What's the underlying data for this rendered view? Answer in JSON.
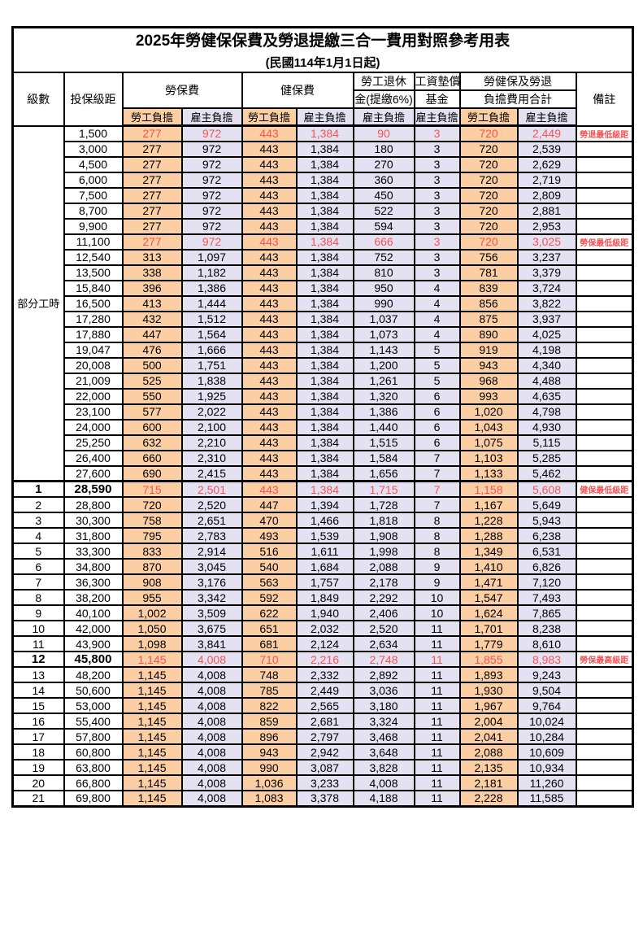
{
  "title": "2025年勞健保保費及勞退提繳三合一費用對照參考用表",
  "subtitle": "(民國114年1月1日起)",
  "header": {
    "level": "級數",
    "bracket": "投保級距",
    "labor": "勞保費",
    "health": "健保費",
    "pension_l1": "勞工退休",
    "pension_l2": "金(提繳6%)",
    "fund_l1": "工資墊償",
    "fund_l2": "基金",
    "total_l1": "勞健保及勞退",
    "total_l2": "負擔費用合計",
    "remark": "備註",
    "employee": "勞工負擔",
    "employer": "雇主負擔"
  },
  "part_time_label": "部分工時",
  "colors": {
    "employee_bg": "#FBCEA4",
    "employer_bg": "#E3E1F2",
    "highlight_red": "#F75353"
  },
  "rows": [
    {
      "level": "",
      "bracket": "1,500",
      "lab_e": "277",
      "lab_r": "972",
      "hea_e": "443",
      "hea_r": "1,384",
      "pen": "90",
      "fund": "3",
      "tot_e": "720",
      "tot_r": "2,449",
      "remark": "勞退最低級距",
      "hl": true,
      "bold": false
    },
    {
      "level": "",
      "bracket": "3,000",
      "lab_e": "277",
      "lab_r": "972",
      "hea_e": "443",
      "hea_r": "1,384",
      "pen": "180",
      "fund": "3",
      "tot_e": "720",
      "tot_r": "2,539",
      "remark": "",
      "hl": false,
      "bold": false
    },
    {
      "level": "",
      "bracket": "4,500",
      "lab_e": "277",
      "lab_r": "972",
      "hea_e": "443",
      "hea_r": "1,384",
      "pen": "270",
      "fund": "3",
      "tot_e": "720",
      "tot_r": "2,629",
      "remark": "",
      "hl": false,
      "bold": false
    },
    {
      "level": "",
      "bracket": "6,000",
      "lab_e": "277",
      "lab_r": "972",
      "hea_e": "443",
      "hea_r": "1,384",
      "pen": "360",
      "fund": "3",
      "tot_e": "720",
      "tot_r": "2,719",
      "remark": "",
      "hl": false,
      "bold": false
    },
    {
      "level": "",
      "bracket": "7,500",
      "lab_e": "277",
      "lab_r": "972",
      "hea_e": "443",
      "hea_r": "1,384",
      "pen": "450",
      "fund": "3",
      "tot_e": "720",
      "tot_r": "2,809",
      "remark": "",
      "hl": false,
      "bold": false
    },
    {
      "level": "",
      "bracket": "8,700",
      "lab_e": "277",
      "lab_r": "972",
      "hea_e": "443",
      "hea_r": "1,384",
      "pen": "522",
      "fund": "3",
      "tot_e": "720",
      "tot_r": "2,881",
      "remark": "",
      "hl": false,
      "bold": false
    },
    {
      "level": "",
      "bracket": "9,900",
      "lab_e": "277",
      "lab_r": "972",
      "hea_e": "443",
      "hea_r": "1,384",
      "pen": "594",
      "fund": "3",
      "tot_e": "720",
      "tot_r": "2,953",
      "remark": "",
      "hl": false,
      "bold": false
    },
    {
      "level": "",
      "bracket": "11,100",
      "lab_e": "277",
      "lab_r": "972",
      "hea_e": "443",
      "hea_r": "1,384",
      "pen": "666",
      "fund": "3",
      "tot_e": "720",
      "tot_r": "3,025",
      "remark": "勞保最低級距",
      "hl": true,
      "bold": false
    },
    {
      "level": "",
      "bracket": "12,540",
      "lab_e": "313",
      "lab_r": "1,097",
      "hea_e": "443",
      "hea_r": "1,384",
      "pen": "752",
      "fund": "3",
      "tot_e": "756",
      "tot_r": "3,237",
      "remark": "",
      "hl": false,
      "bold": false
    },
    {
      "level": "",
      "bracket": "13,500",
      "lab_e": "338",
      "lab_r": "1,182",
      "hea_e": "443",
      "hea_r": "1,384",
      "pen": "810",
      "fund": "3",
      "tot_e": "781",
      "tot_r": "3,379",
      "remark": "",
      "hl": false,
      "bold": false
    },
    {
      "level": "",
      "bracket": "15,840",
      "lab_e": "396",
      "lab_r": "1,386",
      "hea_e": "443",
      "hea_r": "1,384",
      "pen": "950",
      "fund": "4",
      "tot_e": "839",
      "tot_r": "3,724",
      "remark": "",
      "hl": false,
      "bold": false
    },
    {
      "level": "",
      "bracket": "16,500",
      "lab_e": "413",
      "lab_r": "1,444",
      "hea_e": "443",
      "hea_r": "1,384",
      "pen": "990",
      "fund": "4",
      "tot_e": "856",
      "tot_r": "3,822",
      "remark": "",
      "hl": false,
      "bold": false
    },
    {
      "level": "",
      "bracket": "17,280",
      "lab_e": "432",
      "lab_r": "1,512",
      "hea_e": "443",
      "hea_r": "1,384",
      "pen": "1,037",
      "fund": "4",
      "tot_e": "875",
      "tot_r": "3,937",
      "remark": "",
      "hl": false,
      "bold": false
    },
    {
      "level": "",
      "bracket": "17,880",
      "lab_e": "447",
      "lab_r": "1,564",
      "hea_e": "443",
      "hea_r": "1,384",
      "pen": "1,073",
      "fund": "4",
      "tot_e": "890",
      "tot_r": "4,025",
      "remark": "",
      "hl": false,
      "bold": false
    },
    {
      "level": "",
      "bracket": "19,047",
      "lab_e": "476",
      "lab_r": "1,666",
      "hea_e": "443",
      "hea_r": "1,384",
      "pen": "1,143",
      "fund": "5",
      "tot_e": "919",
      "tot_r": "4,198",
      "remark": "",
      "hl": false,
      "bold": false
    },
    {
      "level": "",
      "bracket": "20,008",
      "lab_e": "500",
      "lab_r": "1,751",
      "hea_e": "443",
      "hea_r": "1,384",
      "pen": "1,200",
      "fund": "5",
      "tot_e": "943",
      "tot_r": "4,340",
      "remark": "",
      "hl": false,
      "bold": false
    },
    {
      "level": "",
      "bracket": "21,009",
      "lab_e": "525",
      "lab_r": "1,838",
      "hea_e": "443",
      "hea_r": "1,384",
      "pen": "1,261",
      "fund": "5",
      "tot_e": "968",
      "tot_r": "4,488",
      "remark": "",
      "hl": false,
      "bold": false
    },
    {
      "level": "",
      "bracket": "22,000",
      "lab_e": "550",
      "lab_r": "1,925",
      "hea_e": "443",
      "hea_r": "1,384",
      "pen": "1,320",
      "fund": "6",
      "tot_e": "993",
      "tot_r": "4,635",
      "remark": "",
      "hl": false,
      "bold": false
    },
    {
      "level": "",
      "bracket": "23,100",
      "lab_e": "577",
      "lab_r": "2,022",
      "hea_e": "443",
      "hea_r": "1,384",
      "pen": "1,386",
      "fund": "6",
      "tot_e": "1,020",
      "tot_r": "4,798",
      "remark": "",
      "hl": false,
      "bold": false
    },
    {
      "level": "",
      "bracket": "24,000",
      "lab_e": "600",
      "lab_r": "2,100",
      "hea_e": "443",
      "hea_r": "1,384",
      "pen": "1,440",
      "fund": "6",
      "tot_e": "1,043",
      "tot_r": "4,930",
      "remark": "",
      "hl": false,
      "bold": false
    },
    {
      "level": "",
      "bracket": "25,250",
      "lab_e": "632",
      "lab_r": "2,210",
      "hea_e": "443",
      "hea_r": "1,384",
      "pen": "1,515",
      "fund": "6",
      "tot_e": "1,075",
      "tot_r": "5,115",
      "remark": "",
      "hl": false,
      "bold": false
    },
    {
      "level": "",
      "bracket": "26,400",
      "lab_e": "660",
      "lab_r": "2,310",
      "hea_e": "443",
      "hea_r": "1,384",
      "pen": "1,584",
      "fund": "7",
      "tot_e": "1,103",
      "tot_r": "5,285",
      "remark": "",
      "hl": false,
      "bold": false
    },
    {
      "level": "",
      "bracket": "27,600",
      "lab_e": "690",
      "lab_r": "2,415",
      "hea_e": "443",
      "hea_r": "1,384",
      "pen": "1,656",
      "fund": "7",
      "tot_e": "1,133",
      "tot_r": "5,462",
      "remark": "",
      "hl": false,
      "bold": false
    },
    {
      "level": "1",
      "bracket": "28,590",
      "lab_e": "715",
      "lab_r": "2,501",
      "hea_e": "443",
      "hea_r": "1,384",
      "pen": "1,715",
      "fund": "7",
      "tot_e": "1,158",
      "tot_r": "5,608",
      "remark": "健保最低級距",
      "hl": true,
      "bold": true,
      "section_start": true
    },
    {
      "level": "2",
      "bracket": "28,800",
      "lab_e": "720",
      "lab_r": "2,520",
      "hea_e": "447",
      "hea_r": "1,394",
      "pen": "1,728",
      "fund": "7",
      "tot_e": "1,167",
      "tot_r": "5,649",
      "remark": "",
      "hl": false,
      "bold": false
    },
    {
      "level": "3",
      "bracket": "30,300",
      "lab_e": "758",
      "lab_r": "2,651",
      "hea_e": "470",
      "hea_r": "1,466",
      "pen": "1,818",
      "fund": "8",
      "tot_e": "1,228",
      "tot_r": "5,943",
      "remark": "",
      "hl": false,
      "bold": false
    },
    {
      "level": "4",
      "bracket": "31,800",
      "lab_e": "795",
      "lab_r": "2,783",
      "hea_e": "493",
      "hea_r": "1,539",
      "pen": "1,908",
      "fund": "8",
      "tot_e": "1,288",
      "tot_r": "6,238",
      "remark": "",
      "hl": false,
      "bold": false
    },
    {
      "level": "5",
      "bracket": "33,300",
      "lab_e": "833",
      "lab_r": "2,914",
      "hea_e": "516",
      "hea_r": "1,611",
      "pen": "1,998",
      "fund": "8",
      "tot_e": "1,349",
      "tot_r": "6,531",
      "remark": "",
      "hl": false,
      "bold": false
    },
    {
      "level": "6",
      "bracket": "34,800",
      "lab_e": "870",
      "lab_r": "3,045",
      "hea_e": "540",
      "hea_r": "1,684",
      "pen": "2,088",
      "fund": "9",
      "tot_e": "1,410",
      "tot_r": "6,826",
      "remark": "",
      "hl": false,
      "bold": false
    },
    {
      "level": "7",
      "bracket": "36,300",
      "lab_e": "908",
      "lab_r": "3,176",
      "hea_e": "563",
      "hea_r": "1,757",
      "pen": "2,178",
      "fund": "9",
      "tot_e": "1,471",
      "tot_r": "7,120",
      "remark": "",
      "hl": false,
      "bold": false
    },
    {
      "level": "8",
      "bracket": "38,200",
      "lab_e": "955",
      "lab_r": "3,342",
      "hea_e": "592",
      "hea_r": "1,849",
      "pen": "2,292",
      "fund": "10",
      "tot_e": "1,547",
      "tot_r": "7,493",
      "remark": "",
      "hl": false,
      "bold": false
    },
    {
      "level": "9",
      "bracket": "40,100",
      "lab_e": "1,002",
      "lab_r": "3,509",
      "hea_e": "622",
      "hea_r": "1,940",
      "pen": "2,406",
      "fund": "10",
      "tot_e": "1,624",
      "tot_r": "7,865",
      "remark": "",
      "hl": false,
      "bold": false
    },
    {
      "level": "10",
      "bracket": "42,000",
      "lab_e": "1,050",
      "lab_r": "3,675",
      "hea_e": "651",
      "hea_r": "2,032",
      "pen": "2,520",
      "fund": "11",
      "tot_e": "1,701",
      "tot_r": "8,238",
      "remark": "",
      "hl": false,
      "bold": false
    },
    {
      "level": "11",
      "bracket": "43,900",
      "lab_e": "1,098",
      "lab_r": "3,841",
      "hea_e": "681",
      "hea_r": "2,124",
      "pen": "2,634",
      "fund": "11",
      "tot_e": "1,779",
      "tot_r": "8,610",
      "remark": "",
      "hl": false,
      "bold": false
    },
    {
      "level": "12",
      "bracket": "45,800",
      "lab_e": "1,145",
      "lab_r": "4,008",
      "hea_e": "710",
      "hea_r": "2,216",
      "pen": "2,748",
      "fund": "11",
      "tot_e": "1,855",
      "tot_r": "8,983",
      "remark": "勞保最高級距",
      "hl": true,
      "bold": true
    },
    {
      "level": "13",
      "bracket": "48,200",
      "lab_e": "1,145",
      "lab_r": "4,008",
      "hea_e": "748",
      "hea_r": "2,332",
      "pen": "2,892",
      "fund": "11",
      "tot_e": "1,893",
      "tot_r": "9,243",
      "remark": "",
      "hl": false,
      "bold": false
    },
    {
      "level": "14",
      "bracket": "50,600",
      "lab_e": "1,145",
      "lab_r": "4,008",
      "hea_e": "785",
      "hea_r": "2,449",
      "pen": "3,036",
      "fund": "11",
      "tot_e": "1,930",
      "tot_r": "9,504",
      "remark": "",
      "hl": false,
      "bold": false
    },
    {
      "level": "15",
      "bracket": "53,000",
      "lab_e": "1,145",
      "lab_r": "4,008",
      "hea_e": "822",
      "hea_r": "2,565",
      "pen": "3,180",
      "fund": "11",
      "tot_e": "1,967",
      "tot_r": "9,764",
      "remark": "",
      "hl": false,
      "bold": false
    },
    {
      "level": "16",
      "bracket": "55,400",
      "lab_e": "1,145",
      "lab_r": "4,008",
      "hea_e": "859",
      "hea_r": "2,681",
      "pen": "3,324",
      "fund": "11",
      "tot_e": "2,004",
      "tot_r": "10,024",
      "remark": "",
      "hl": false,
      "bold": false
    },
    {
      "level": "17",
      "bracket": "57,800",
      "lab_e": "1,145",
      "lab_r": "4,008",
      "hea_e": "896",
      "hea_r": "2,797",
      "pen": "3,468",
      "fund": "11",
      "tot_e": "2,041",
      "tot_r": "10,284",
      "remark": "",
      "hl": false,
      "bold": false
    },
    {
      "level": "18",
      "bracket": "60,800",
      "lab_e": "1,145",
      "lab_r": "4,008",
      "hea_e": "943",
      "hea_r": "2,942",
      "pen": "3,648",
      "fund": "11",
      "tot_e": "2,088",
      "tot_r": "10,609",
      "remark": "",
      "hl": false,
      "bold": false
    },
    {
      "level": "19",
      "bracket": "63,800",
      "lab_e": "1,145",
      "lab_r": "4,008",
      "hea_e": "990",
      "hea_r": "3,087",
      "pen": "3,828",
      "fund": "11",
      "tot_e": "2,135",
      "tot_r": "10,934",
      "remark": "",
      "hl": false,
      "bold": false
    },
    {
      "level": "20",
      "bracket": "66,800",
      "lab_e": "1,145",
      "lab_r": "4,008",
      "hea_e": "1,036",
      "hea_r": "3,233",
      "pen": "4,008",
      "fund": "11",
      "tot_e": "2,181",
      "tot_r": "11,260",
      "remark": "",
      "hl": false,
      "bold": false
    },
    {
      "level": "21",
      "bracket": "69,800",
      "lab_e": "1,145",
      "lab_r": "4,008",
      "hea_e": "1,083",
      "hea_r": "3,378",
      "pen": "4,188",
      "fund": "11",
      "tot_e": "2,228",
      "tot_r": "11,585",
      "remark": "",
      "hl": false,
      "bold": false
    }
  ]
}
